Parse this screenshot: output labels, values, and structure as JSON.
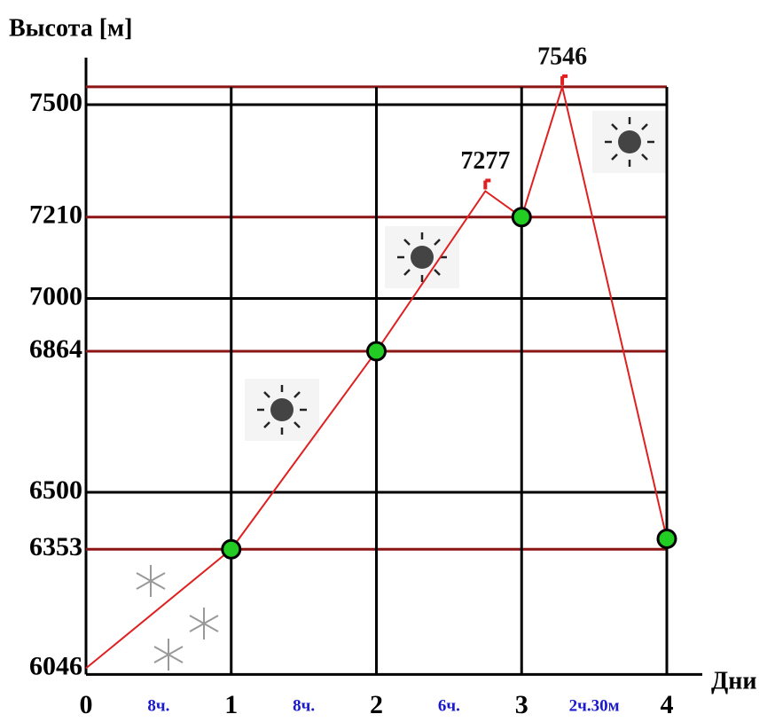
{
  "chart_data": {
    "type": "line",
    "title": "Высота [м]",
    "x_label": "Дни",
    "x": [
      0,
      1,
      2,
      2.75,
      3,
      3.28,
      4
    ],
    "series": [
      {
        "color": "#e02020",
        "values": [
          6046,
          6353,
          6864,
          7277,
          7210,
          7546,
          6380
        ],
        "value_labels": [
          null,
          null,
          null,
          "7277",
          null,
          "7546",
          null
        ],
        "markers": [
          false,
          true,
          true,
          false,
          true,
          false,
          true
        ],
        "marker_color": "#22cc22"
      }
    ],
    "xlim": [
      0,
      4
    ],
    "xticks": [
      0,
      1,
      2,
      3,
      4
    ],
    "ylim": [
      6030,
      7590
    ],
    "yticks": [
      6046,
      6353,
      6500,
      6864,
      7000,
      7210,
      7500
    ],
    "gridlines": [
      6500,
      7000,
      7500
    ],
    "grid_color": "#000000",
    "reference_lines": [
      6353,
      6864,
      7210,
      7546
    ],
    "reference_color": "#8b1414",
    "segment_labels": [
      "8ч.",
      "8ч.",
      "6ч.",
      "2ч.30м"
    ],
    "segment_label_color": "#1a1acc"
  }
}
